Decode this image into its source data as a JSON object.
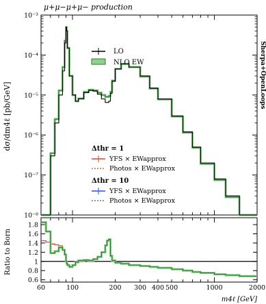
{
  "chart_data": [
    {
      "type": "line",
      "title": "μ+μ−μ+μ− production",
      "ylabel": "dσ/dm4ℓ [pb/GeV]",
      "yscale": "log",
      "ylim": [
        1e-08,
        0.001
      ],
      "xscale": "log",
      "xlim": [
        60,
        2000
      ],
      "y_ticks": [
        "10⁻⁸",
        "10⁻⁷",
        "10⁻⁶",
        "10⁻⁵",
        "10⁻⁴",
        "10⁻³"
      ],
      "x": [
        60,
        65,
        70,
        75,
        80,
        85,
        88,
        90,
        91,
        92,
        95,
        100,
        105,
        110,
        120,
        130,
        140,
        150,
        160,
        170,
        175,
        180,
        185,
        190,
        200,
        220,
        250,
        300,
        350,
        400,
        500,
        600,
        700,
        800,
        1000,
        1200,
        1500,
        2000
      ],
      "series": [
        {
          "name": "LO",
          "color": "#000000",
          "values": [
            1e-08,
            1e-08,
            3e-07,
            2e-06,
            1e-05,
            4e-05,
            0.0002,
            0.0005,
            0.0004,
            0.00015,
            3e-05,
            1e-05,
            7e-06,
            8e-06,
            1.15e-05,
            1.3e-05,
            1.25e-05,
            1.05e-05,
            8e-06,
            6.5e-06,
            6.5e-06,
            7e-06,
            1.1e-05,
            2.2e-05,
            4.5e-05,
            6e-05,
            5e-05,
            3e-05,
            1.5e-05,
            8e-06,
            3e-06,
            1.2e-06,
            5e-07,
            2e-07,
            8e-08,
            3e-08,
            1e-08,
            1e-08
          ]
        },
        {
          "name": "NLO EW",
          "color": "#2d7a2d",
          "values": [
            1e-08,
            1e-08,
            3.5e-07,
            2.5e-06,
            1.3e-05,
            5e-05,
            0.00023,
            0.0005,
            0.0004,
            0.00015,
            3e-05,
            1e-05,
            7e-06,
            8.2e-06,
            1.2e-05,
            1.35e-05,
            1.3e-05,
            1.15e-05,
            1e-05,
            9e-06,
            9e-06,
            9.5e-06,
            1.2e-05,
            2.3e-05,
            4.5e-05,
            6e-05,
            5e-05,
            2.9e-05,
            1.45e-05,
            7.8e-06,
            2.9e-06,
            1.15e-06,
            4.8e-07,
            1.9e-07,
            7.5e-08,
            2.8e-08,
            1e-08,
            1e-08
          ]
        }
      ],
      "legend": {
        "items": [
          "LO",
          "NLO EW"
        ],
        "group1_title": "Δthr = 1",
        "group1_items": [
          "YFS × EWapprox",
          "Photos × EWapprox"
        ],
        "group2_title": "Δthr = 10",
        "group2_items": [
          "YFS × EWapprox",
          "Photos × EWapprox"
        ]
      },
      "side_label": "Sherpa+OpenLoops"
    },
    {
      "type": "line",
      "ylabel": "Ratio to Born",
      "xlabel": "m4ℓ [GeV]",
      "xscale": "log",
      "xlim": [
        60,
        2000
      ],
      "ylim": [
        0.55,
        1.95
      ],
      "y_ticks": [
        "0.6",
        "0.8",
        "1",
        "1.2",
        "1.4",
        "1.6",
        "1.8"
      ],
      "x_ticks": [
        "60",
        "100",
        "200",
        "300",
        "400",
        "500",
        "1000",
        "2000"
      ],
      "x": [
        60,
        65,
        70,
        75,
        80,
        85,
        88,
        90,
        91,
        92,
        95,
        100,
        105,
        110,
        120,
        130,
        140,
        150,
        160,
        170,
        175,
        180,
        185,
        190,
        200,
        220,
        250,
        300,
        350,
        400,
        500,
        600,
        700,
        800,
        1000,
        1200,
        1500,
        2000
      ],
      "series": [
        {
          "name": "NLO EW",
          "color": "#2d7a2d",
          "values": [
            1.85,
            1.65,
            1.18,
            1.22,
            1.3,
            1.25,
            1.15,
            1.0,
            0.95,
            0.92,
            0.88,
            0.92,
            0.98,
            1.02,
            1.03,
            1.02,
            1.05,
            1.1,
            1.2,
            1.35,
            1.45,
            1.48,
            1.12,
            1.02,
            0.97,
            0.95,
            0.92,
            0.9,
            0.88,
            0.86,
            0.83,
            0.8,
            0.77,
            0.75,
            0.72,
            0.7,
            0.68,
            0.65
          ]
        },
        {
          "name": "YFS × EWapprox (Δthr = 1)",
          "color": "#e8402a",
          "values": [
            1.45,
            1.42,
            1.38,
            1.36,
            1.34,
            1.25,
            1.15,
            1.0,
            0.95,
            0.92,
            0.88,
            0.92,
            0.98,
            1.02,
            1.03,
            1.02,
            1.05,
            1.1,
            1.2,
            1.35,
            1.45,
            1.48,
            1.12,
            1.02,
            0.97,
            0.95,
            0.92,
            0.9,
            0.88,
            0.86,
            0.83,
            0.8,
            0.77,
            0.75,
            0.72,
            0.7,
            0.68,
            0.65
          ]
        }
      ]
    }
  ]
}
